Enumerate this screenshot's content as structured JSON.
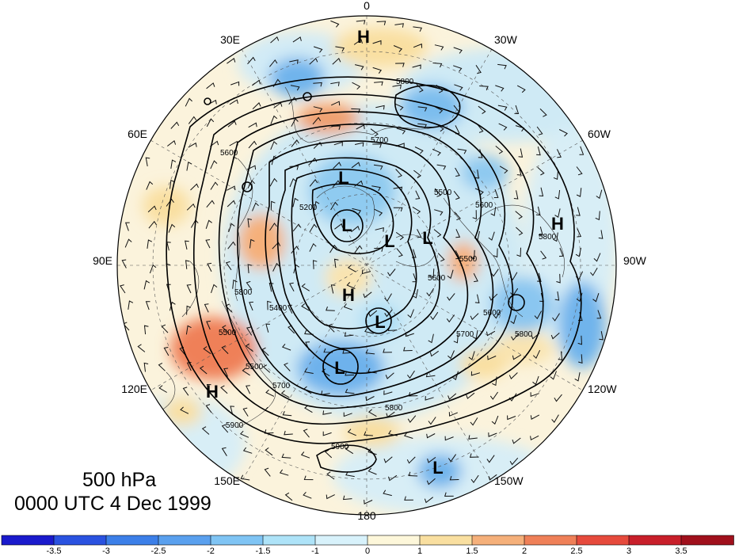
{
  "title": {
    "level": "500 hPa",
    "time": "0000 UTC 4 Dec 1999"
  },
  "longitude_labels": [
    "0",
    "30W",
    "60W",
    "90W",
    "120W",
    "150W",
    "180",
    "150E",
    "120E",
    "90E",
    "60E",
    "30E"
  ],
  "pressure_centers": [
    {
      "label": "H",
      "lon": "0",
      "name": "h-north"
    },
    {
      "label": "L",
      "name": "l-pole-1"
    },
    {
      "label": "L",
      "name": "l-pole-2"
    },
    {
      "label": "L",
      "name": "l-center-1"
    },
    {
      "label": "L",
      "name": "l-center-2"
    },
    {
      "label": "H",
      "name": "h-center"
    },
    {
      "label": "L",
      "name": "l-center-3"
    },
    {
      "label": "L",
      "name": "l-pacific"
    },
    {
      "label": "H",
      "name": "h-america"
    },
    {
      "label": "H",
      "name": "h-asia"
    },
    {
      "label": "L",
      "name": "l-south"
    }
  ],
  "contour_labels": [
    "5800",
    "5700",
    "5500",
    "5200",
    "5500",
    "5600",
    "5800",
    "5800",
    "5600",
    "5700",
    "5800",
    "5500",
    "5400",
    "5600",
    "5500",
    "5900",
    "5700",
    "5800",
    "5900",
    "5600"
  ],
  "colorbar": {
    "ticks": [
      "-3.5",
      "-3",
      "-2.5",
      "-2",
      "-1.5",
      "-1",
      "0",
      "1",
      "1.5",
      "2",
      "2.5",
      "3",
      "3.5"
    ],
    "colors": [
      "#1a1acc",
      "#2a52e0",
      "#3c7fe8",
      "#5aa0ee",
      "#7fc4f4",
      "#aee3f8",
      "#d8f2fb",
      "#fdf7da",
      "#f9dfa0",
      "#f5b07a",
      "#ef8058",
      "#e64a3c",
      "#c81f2a",
      "#a0101c"
    ]
  }
}
